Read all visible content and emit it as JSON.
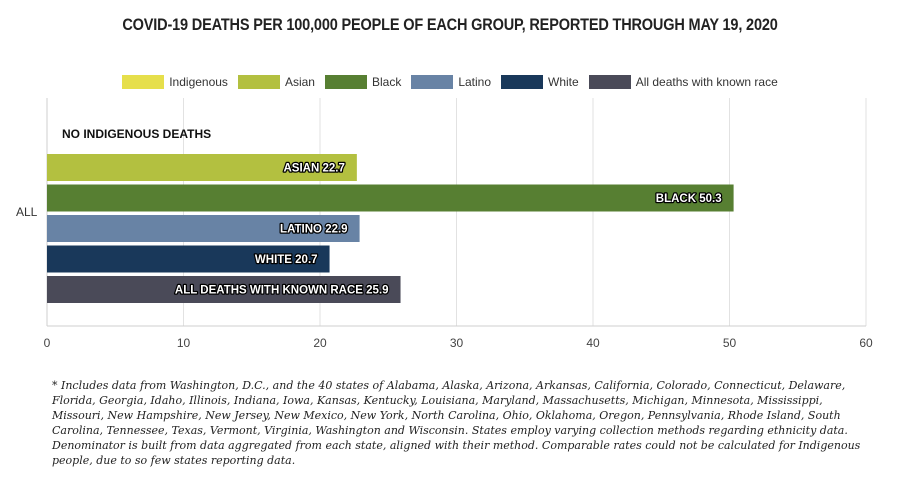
{
  "chart_data": {
    "type": "bar",
    "orientation": "horizontal",
    "title": "COVID-19 DEATHS PER 100,000 PEOPLE OF EACH GROUP, REPORTED THROUGH MAY 19, 2020",
    "category_label": "ALL",
    "xlim": [
      0,
      60
    ],
    "xticks": [
      0,
      10,
      20,
      30,
      40,
      50,
      60
    ],
    "grid": true,
    "legend_position": "top",
    "legend": [
      {
        "name": "Indigenous",
        "color": "#e6df4b"
      },
      {
        "name": "Asian",
        "color": "#b3c040"
      },
      {
        "name": "Black",
        "color": "#577f32"
      },
      {
        "name": "Latino",
        "color": "#6883a5"
      },
      {
        "name": "White",
        "color": "#19385a"
      },
      {
        "name": "All deaths with known race",
        "color": "#4a4a58"
      }
    ],
    "annotation": "NO INDIGENOUS DEATHS",
    "series": [
      {
        "label": "ASIAN",
        "value": 22.7,
        "color": "#b3c040"
      },
      {
        "label": "BLACK",
        "value": 50.3,
        "color": "#577f32"
      },
      {
        "label": "LATINO",
        "value": 22.9,
        "color": "#6883a5"
      },
      {
        "label": "WHITE",
        "value": 20.7,
        "color": "#19385a"
      },
      {
        "label": "ALL DEATHS WITH KNOWN RACE",
        "value": 25.9,
        "color": "#4a4a58"
      }
    ]
  },
  "footnote": "* Includes data from Washington, D.C., and the 40 states of Alabama, Alaska, Arizona, Arkansas, California, Colorado, Connecticut, Delaware, Florida, Georgia, Idaho, Illinois, Indiana, Iowa, Kansas, Kentucky, Louisiana, Maryland, Massachusetts, Michigan, Minnesota, Mississippi, Missouri, New Hampshire, New Jersey, New Mexico, New York, North Carolina, Ohio, Oklahoma, Oregon, Pennsylvania, Rhode Island, South Carolina, Tennessee, Texas, Vermont, Virginia, Washington and Wisconsin. States employ varying collection methods regarding ethnicity data. Denominator is built from data aggregated from each state, aligned with their method. Comparable rates could not be calculated for Indigenous people, due to so few states reporting data."
}
